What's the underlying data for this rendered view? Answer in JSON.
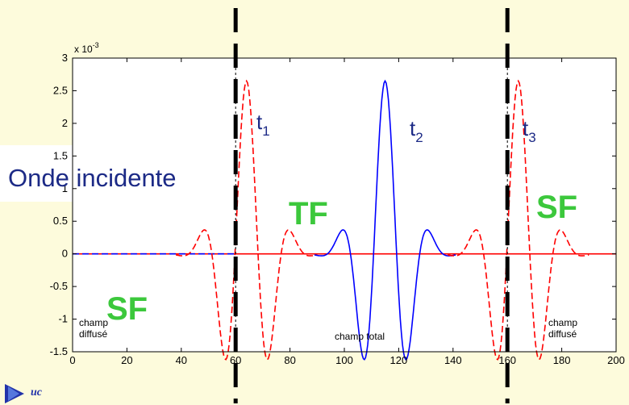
{
  "chart_data": {
    "type": "line",
    "x_ticks": [
      "0",
      "20",
      "40",
      "60",
      "80",
      "100",
      "120",
      "140",
      "160",
      "180",
      "200"
    ],
    "y_ticks": [
      "-1.5",
      "-1",
      "-0.5",
      "0",
      "0.5",
      "1",
      "1.5",
      "2",
      "2.5",
      "3"
    ],
    "exponent_label": "x 10",
    "exponent_power": "-3",
    "xlim": [
      0,
      200
    ],
    "ylim": [
      -1.5,
      3
    ],
    "boundaries_x": [
      60,
      160
    ],
    "series": [
      {
        "color": "#ff0000",
        "style": "solid",
        "segment": "baseline",
        "x": [
          0,
          200
        ],
        "y": [
          0,
          0
        ]
      },
      {
        "color": "#0000ff",
        "style": "dashed",
        "segment": "scattered-field-left",
        "x": [
          0,
          60
        ],
        "y": [
          0,
          0
        ]
      },
      {
        "color": "#ff0000",
        "style": "dashed",
        "segment": "pulse-t1",
        "center": 64,
        "amplitude": 2.65
      },
      {
        "color": "#0000ff",
        "style": "solid",
        "segment": "pulse-t2",
        "center": 115,
        "amplitude": 2.65
      },
      {
        "color": "#ff0000",
        "style": "dashed",
        "segment": "pulse-t3",
        "center": 164,
        "amplitude": 2.65
      }
    ],
    "annotations": {
      "t1": {
        "t": "t",
        "sub": "1"
      },
      "t2": {
        "t": "t",
        "sub": "2"
      },
      "t3": {
        "t": "t",
        "sub": "3"
      },
      "champ_left": [
        "champ",
        "diffusé"
      ],
      "champ_center": "champ total",
      "champ_right": [
        "champ",
        "diffusé"
      ]
    }
  },
  "overlay": {
    "incident_label": "Onde incidente",
    "region_tf": "TF",
    "region_sf_left": "SF",
    "region_sf_right": "SF"
  },
  "colors": {
    "background": "#fdfbdc",
    "region_text": "#3cc83c",
    "t_text": "#1c2a86",
    "pulse_red": "#ff0000",
    "pulse_blue": "#0000ff"
  },
  "logo": {
    "icon": "corner-logo-icon"
  }
}
